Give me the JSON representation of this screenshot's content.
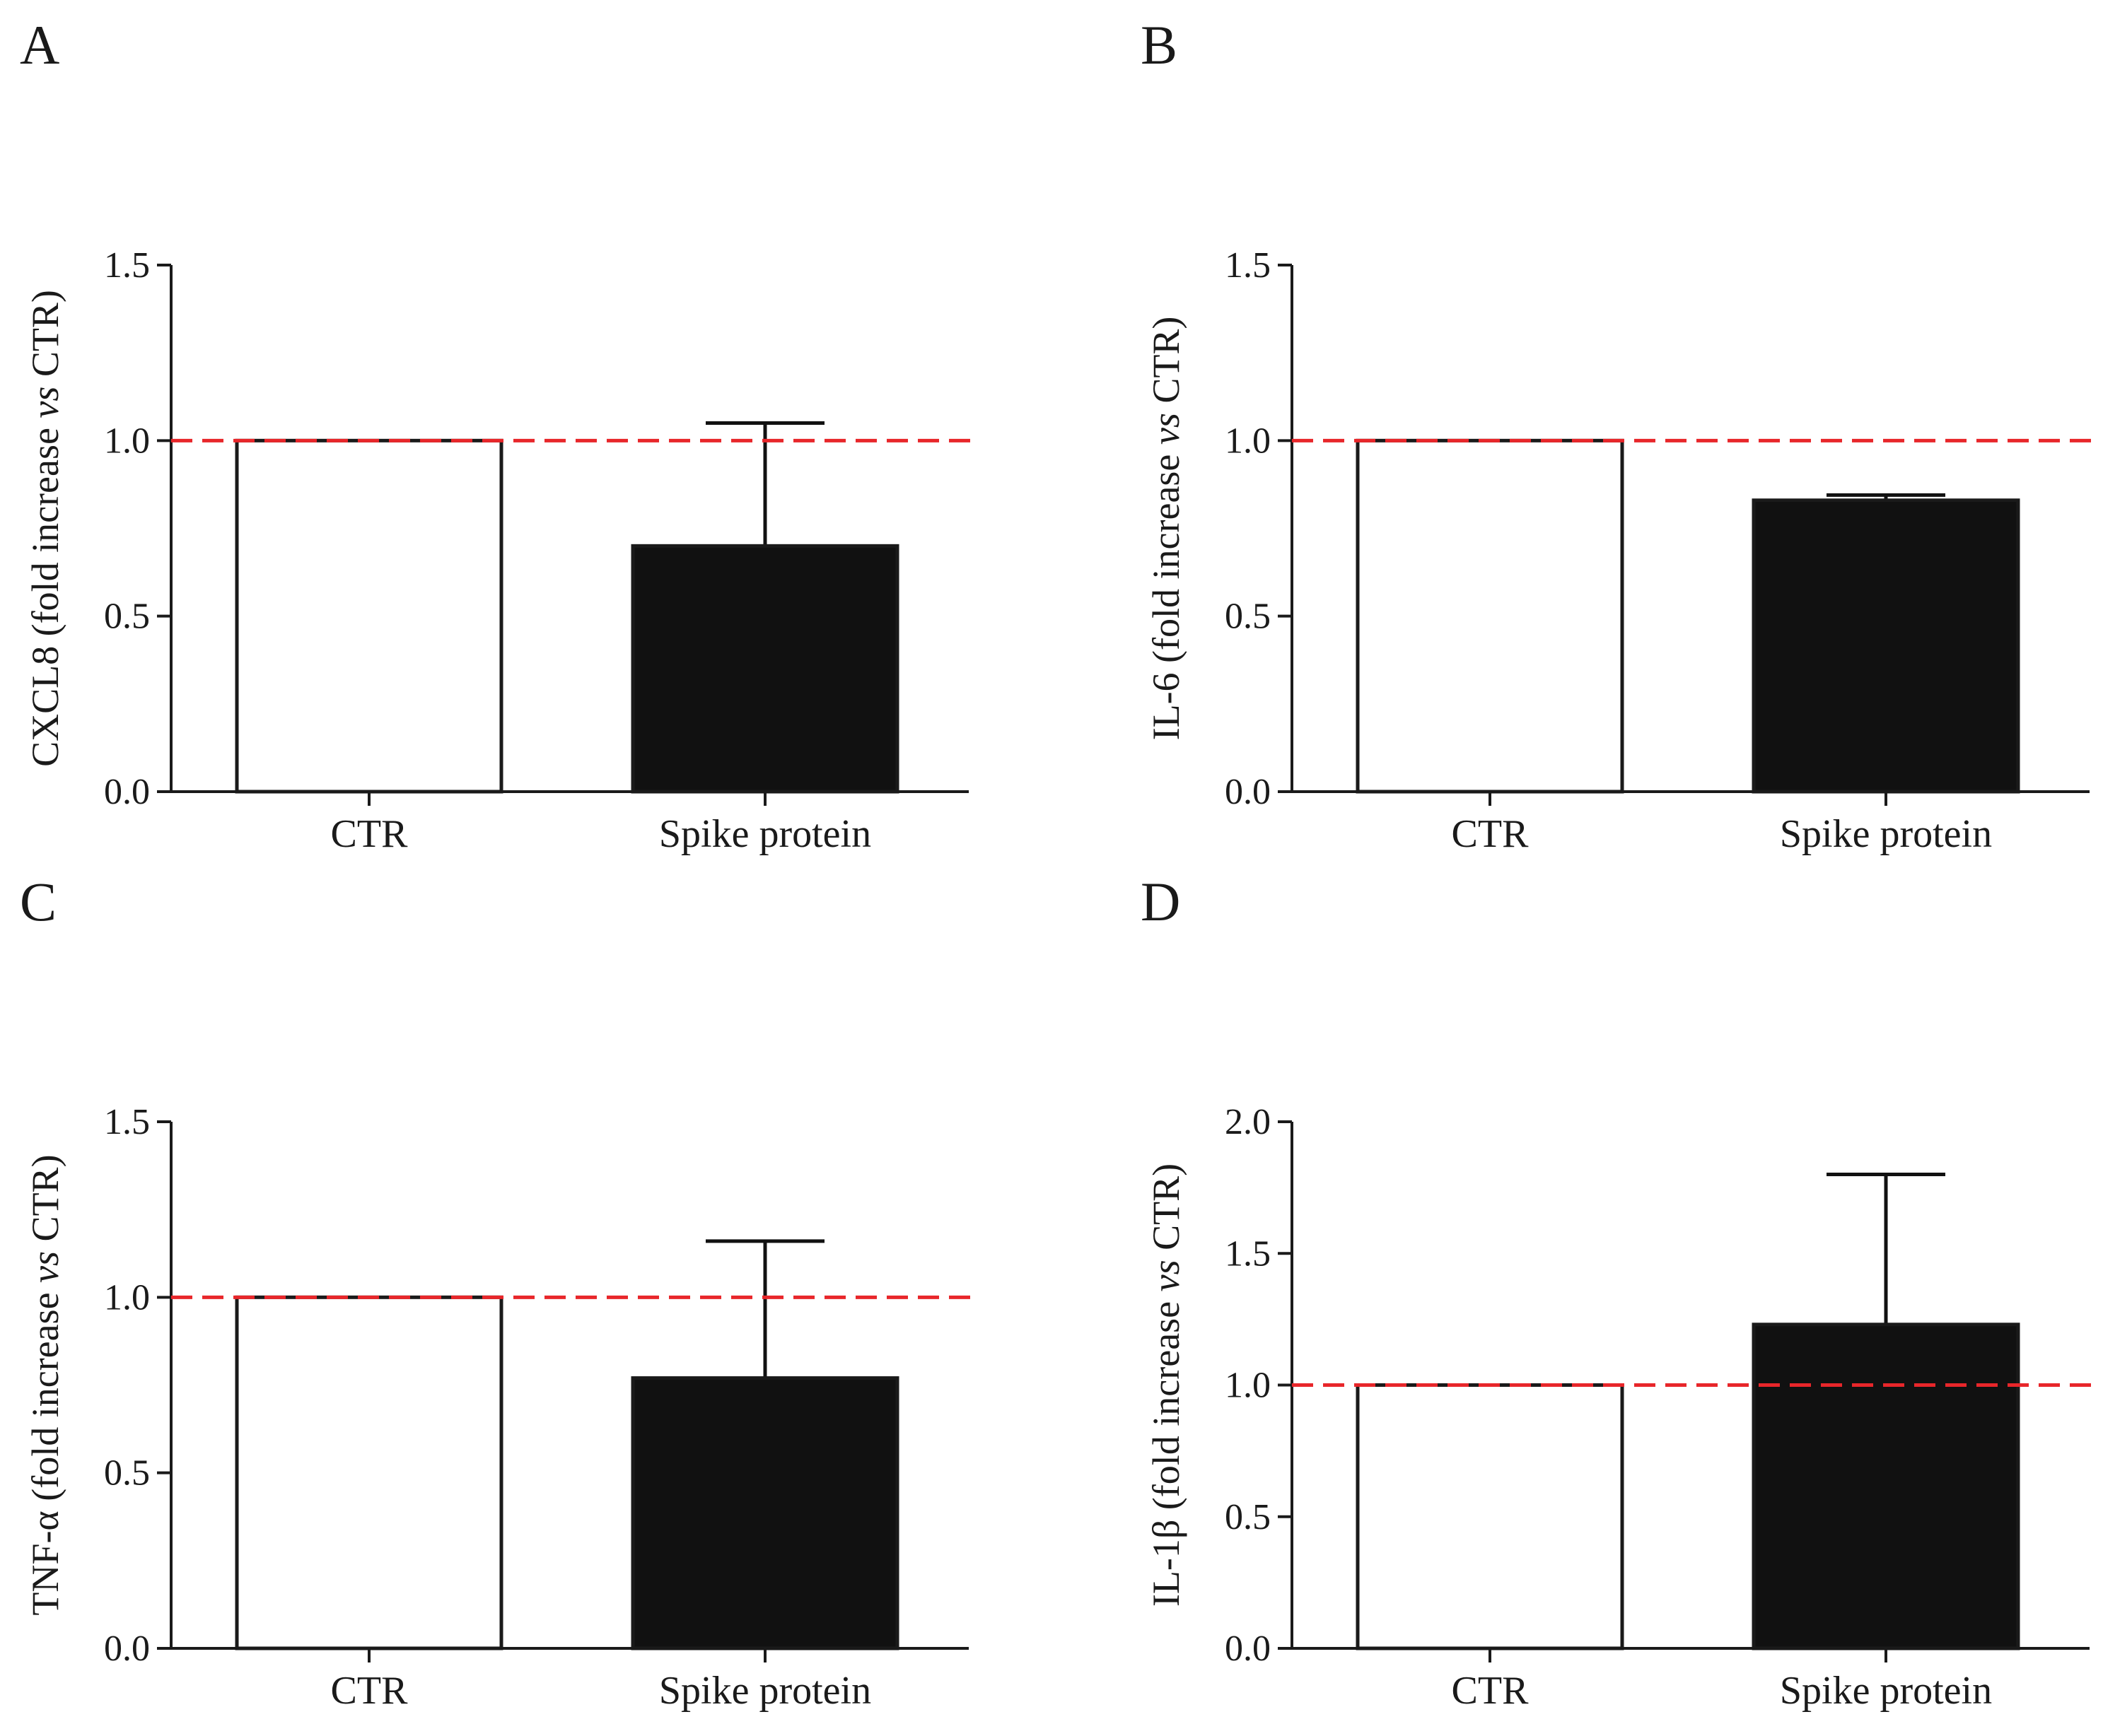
{
  "colors": {
    "reference_line": "#e8262a",
    "ctr_fill": "#ffffff",
    "spike_fill": "#111111",
    "outline": "#1a1a1a"
  },
  "chart_data": [
    {
      "panel": "A",
      "type": "bar",
      "categories": [
        "CTR",
        "Spike protein"
      ],
      "values": [
        1.0,
        0.7
      ],
      "error_upper": [
        0.0,
        0.35
      ],
      "ylabel_parts": [
        "CXCL8 (fold increase ",
        "vs",
        " CTR)"
      ],
      "ylim": [
        0,
        1.5
      ],
      "yticks": [
        0.0,
        0.5,
        1.0,
        1.5
      ],
      "ytick_labels": [
        "0.0",
        "0.5",
        "1.0",
        "1.5"
      ],
      "reference_line": 1.0,
      "grid": false
    },
    {
      "panel": "B",
      "type": "bar",
      "categories": [
        "CTR",
        "Spike protein"
      ],
      "values": [
        1.0,
        0.83
      ],
      "error_upper": [
        0.0,
        0.015
      ],
      "ylabel_parts": [
        "IL-6 (fold increase ",
        "vs",
        " CTR)"
      ],
      "ylim": [
        0,
        1.5
      ],
      "yticks": [
        0.0,
        0.5,
        1.0,
        1.5
      ],
      "ytick_labels": [
        "0.0",
        "0.5",
        "1.0",
        "1.5"
      ],
      "reference_line": 1.0,
      "grid": false
    },
    {
      "panel": "C",
      "type": "bar",
      "categories": [
        "CTR",
        "Spike protein"
      ],
      "values": [
        1.0,
        0.77
      ],
      "error_upper": [
        0.0,
        0.39
      ],
      "ylabel_parts": [
        "TNF-α (fold increase ",
        "vs",
        " CTR)"
      ],
      "ylim": [
        0,
        1.5
      ],
      "yticks": [
        0.0,
        0.5,
        1.0,
        1.5
      ],
      "ytick_labels": [
        "0.0",
        "0.5",
        "1.0",
        "1.5"
      ],
      "reference_line": 1.0,
      "grid": false
    },
    {
      "panel": "D",
      "type": "bar",
      "categories": [
        "CTR",
        "Spike protein"
      ],
      "values": [
        1.0,
        1.23
      ],
      "error_upper": [
        0.0,
        0.57
      ],
      "ylabel_parts": [
        "IL-1β (fold increase ",
        "vs",
        " CTR)"
      ],
      "ylim": [
        0,
        2.0
      ],
      "yticks": [
        0.0,
        0.5,
        1.0,
        1.5,
        2.0
      ],
      "ytick_labels": [
        "0.0",
        "0.5",
        "1.0",
        "1.5",
        "2.0"
      ],
      "reference_line": 1.0,
      "grid": false
    }
  ]
}
